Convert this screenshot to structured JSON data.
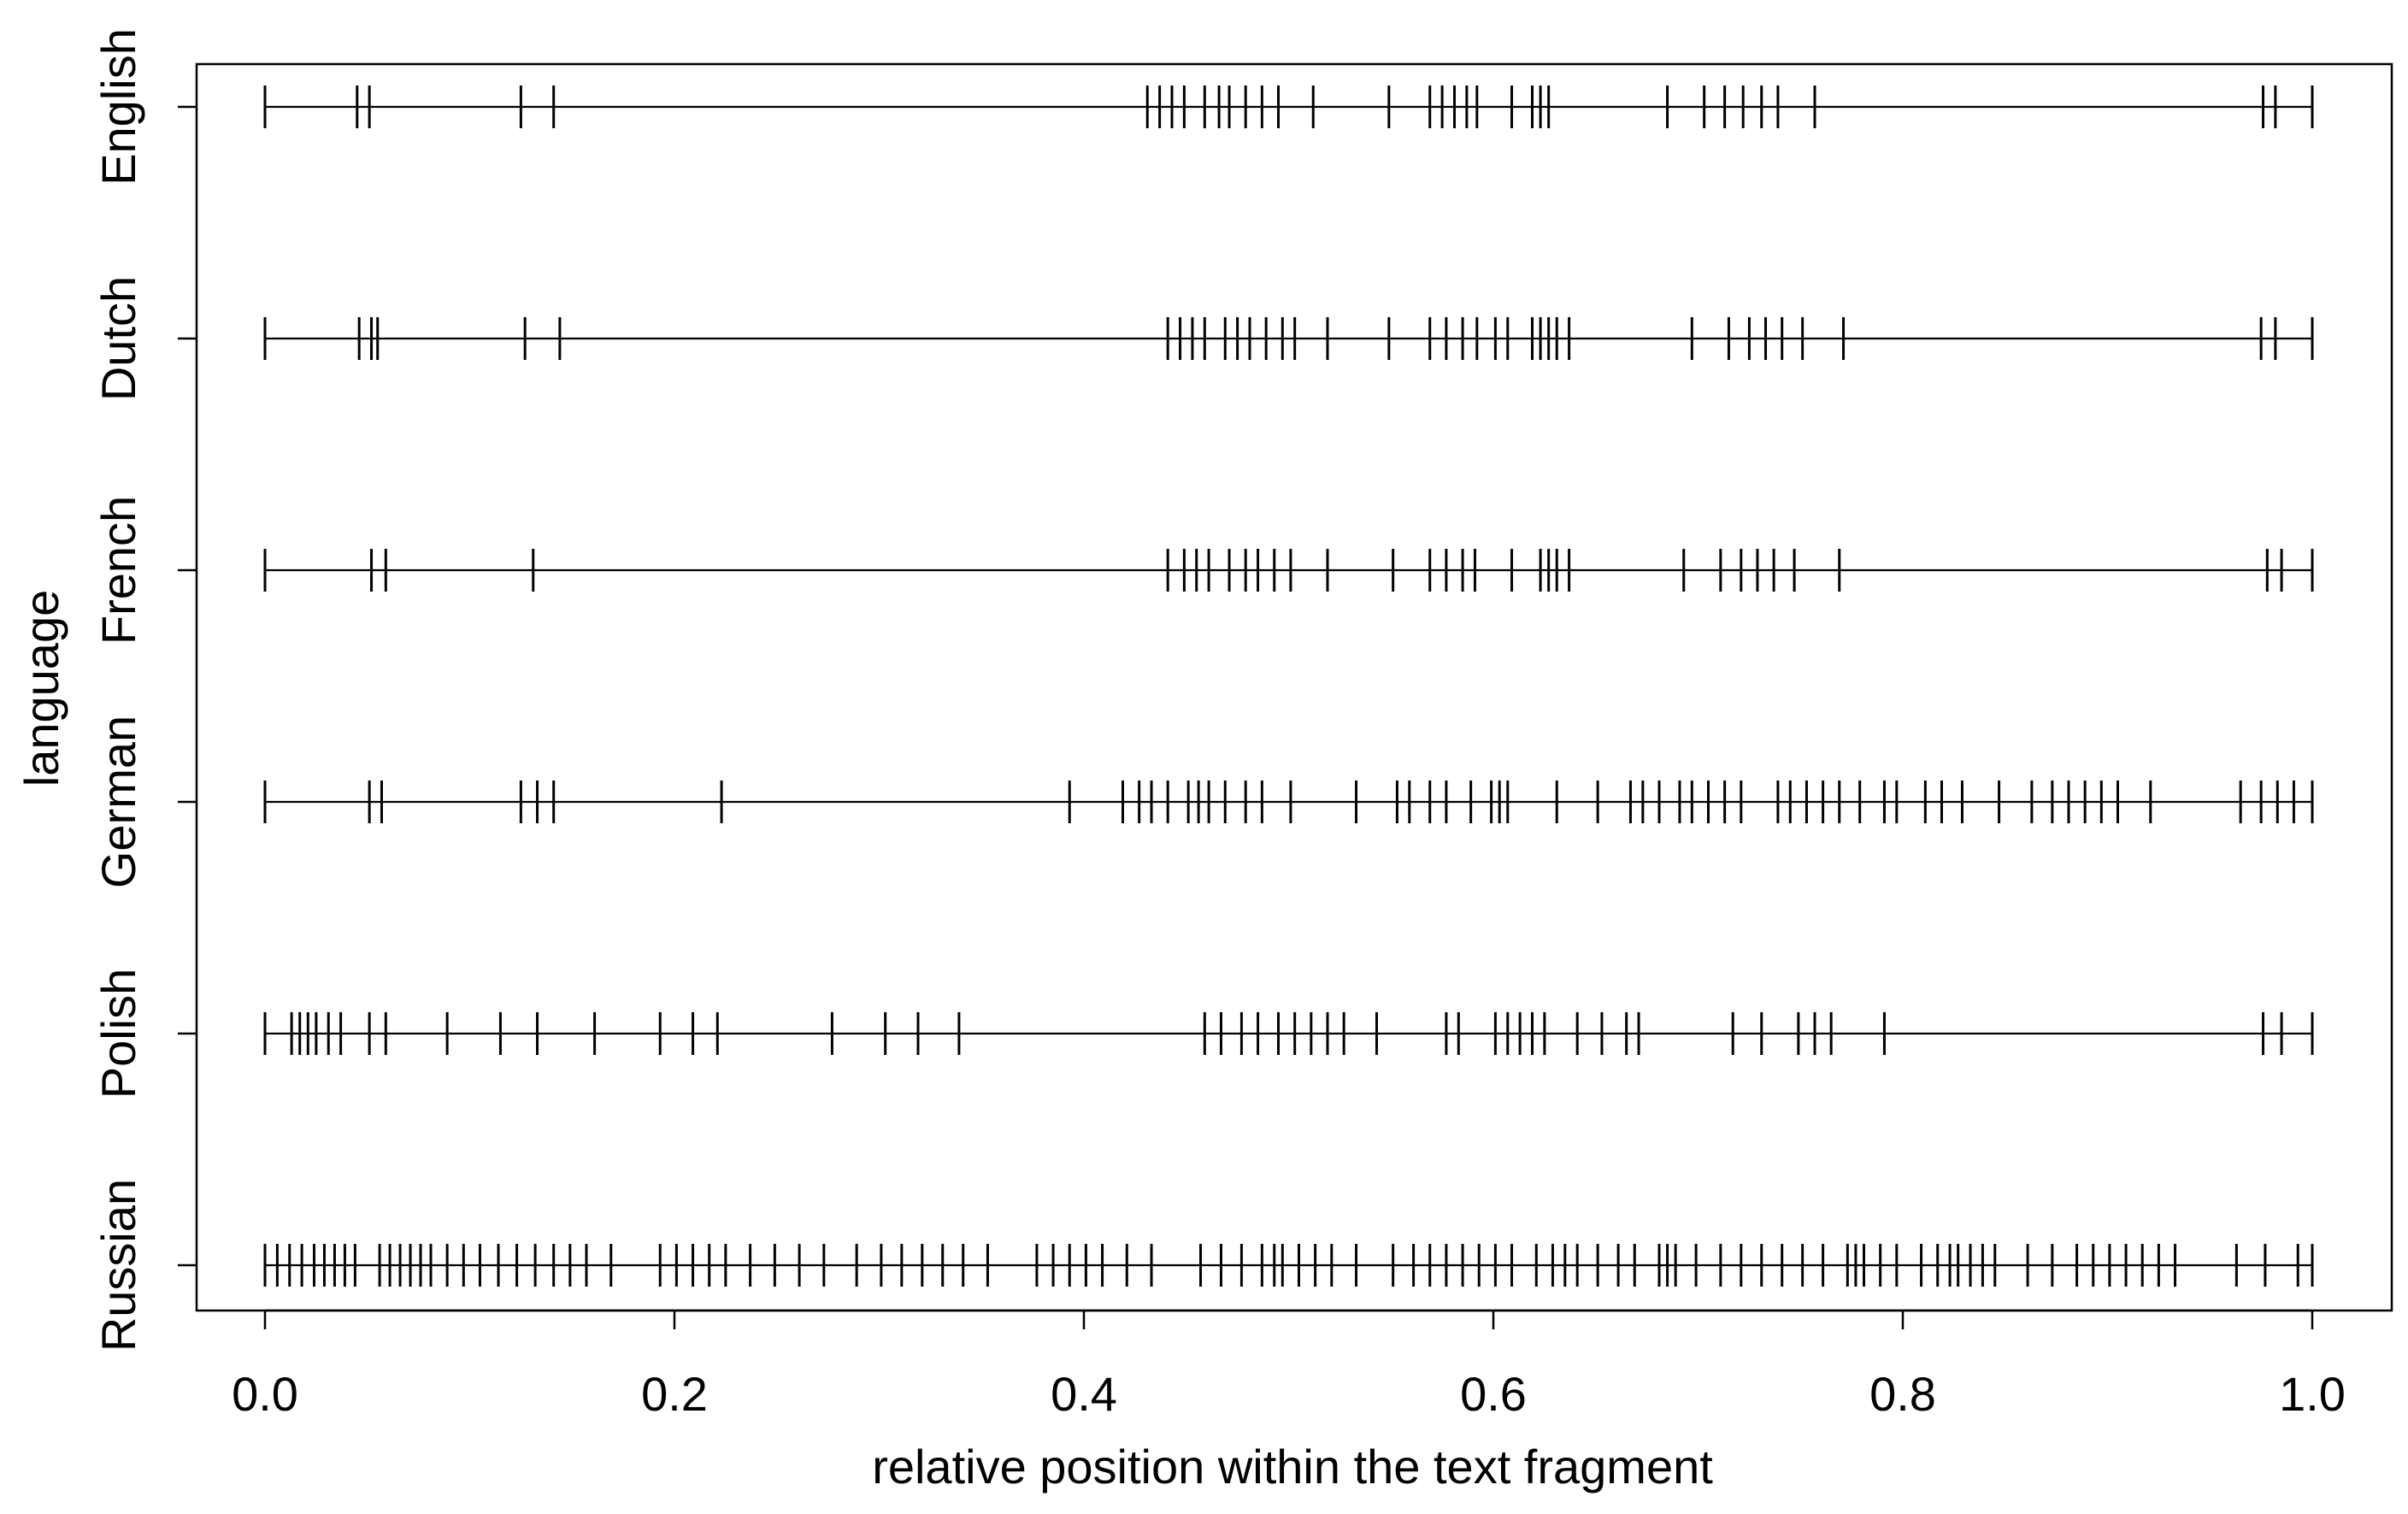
{
  "chart_data": {
    "type": "scatter",
    "title": "",
    "xlabel": "relative position within the text fragment",
    "ylabel": "language",
    "xlim": [
      0.0,
      1.0
    ],
    "x_ticks": [
      "0.0",
      "0.2",
      "0.4",
      "0.6",
      "0.8",
      "1.0"
    ],
    "x_tick_values": [
      0.0,
      0.2,
      0.4,
      0.6,
      0.8,
      1.0
    ],
    "grid": false,
    "legend": "none",
    "marker": "vertical-line",
    "colors": {
      "ink": "#000000",
      "background": "#ffffff"
    },
    "series": [
      {
        "name": "English",
        "x": [
          0.0,
          0.045,
          0.051,
          0.125,
          0.141,
          0.431,
          0.437,
          0.443,
          0.449,
          0.459,
          0.466,
          0.471,
          0.479,
          0.487,
          0.495,
          0.512,
          0.549,
          0.569,
          0.575,
          0.581,
          0.587,
          0.592,
          0.609,
          0.619,
          0.623,
          0.627,
          0.685,
          0.703,
          0.713,
          0.722,
          0.731,
          0.739,
          0.757,
          0.976,
          0.982,
          1.0
        ]
      },
      {
        "name": "Dutch",
        "x": [
          0.0,
          0.046,
          0.052,
          0.055,
          0.127,
          0.144,
          0.441,
          0.447,
          0.453,
          0.459,
          0.469,
          0.475,
          0.481,
          0.489,
          0.497,
          0.503,
          0.519,
          0.549,
          0.569,
          0.577,
          0.585,
          0.592,
          0.601,
          0.607,
          0.619,
          0.623,
          0.627,
          0.631,
          0.637,
          0.697,
          0.715,
          0.725,
          0.733,
          0.741,
          0.751,
          0.771,
          0.975,
          0.982,
          1.0
        ]
      },
      {
        "name": "French",
        "x": [
          0.0,
          0.052,
          0.059,
          0.131,
          0.441,
          0.449,
          0.455,
          0.461,
          0.471,
          0.479,
          0.485,
          0.493,
          0.501,
          0.519,
          0.551,
          0.569,
          0.577,
          0.585,
          0.591,
          0.609,
          0.623,
          0.627,
          0.631,
          0.637,
          0.693,
          0.711,
          0.721,
          0.729,
          0.737,
          0.747,
          0.769,
          0.978,
          0.985,
          1.0
        ]
      },
      {
        "name": "German",
        "x": [
          0.0,
          0.051,
          0.057,
          0.125,
          0.133,
          0.141,
          0.223,
          0.393,
          0.419,
          0.427,
          0.433,
          0.441,
          0.451,
          0.456,
          0.461,
          0.469,
          0.479,
          0.487,
          0.501,
          0.533,
          0.553,
          0.559,
          0.569,
          0.577,
          0.589,
          0.599,
          0.603,
          0.607,
          0.631,
          0.651,
          0.667,
          0.673,
          0.681,
          0.691,
          0.697,
          0.705,
          0.713,
          0.721,
          0.739,
          0.745,
          0.753,
          0.761,
          0.769,
          0.779,
          0.791,
          0.797,
          0.811,
          0.819,
          0.829,
          0.847,
          0.863,
          0.873,
          0.881,
          0.889,
          0.897,
          0.905,
          0.921,
          0.965,
          0.975,
          0.983,
          0.991,
          1.0
        ]
      },
      {
        "name": "Polish",
        "x": [
          0.0,
          0.013,
          0.017,
          0.021,
          0.025,
          0.031,
          0.037,
          0.051,
          0.059,
          0.089,
          0.115,
          0.133,
          0.161,
          0.193,
          0.209,
          0.221,
          0.277,
          0.303,
          0.319,
          0.339,
          0.459,
          0.467,
          0.477,
          0.485,
          0.495,
          0.503,
          0.511,
          0.519,
          0.527,
          0.543,
          0.577,
          0.583,
          0.601,
          0.607,
          0.613,
          0.619,
          0.625,
          0.641,
          0.653,
          0.665,
          0.671,
          0.717,
          0.731,
          0.749,
          0.757,
          0.765,
          0.791,
          0.976,
          0.985,
          1.0
        ]
      },
      {
        "name": "Russian",
        "x": [
          0.0,
          0.006,
          0.012,
          0.018,
          0.024,
          0.029,
          0.034,
          0.039,
          0.044,
          0.056,
          0.061,
          0.066,
          0.071,
          0.076,
          0.081,
          0.089,
          0.097,
          0.105,
          0.114,
          0.123,
          0.132,
          0.141,
          0.149,
          0.157,
          0.169,
          0.193,
          0.201,
          0.209,
          0.217,
          0.225,
          0.237,
          0.249,
          0.261,
          0.273,
          0.289,
          0.301,
          0.311,
          0.321,
          0.331,
          0.341,
          0.353,
          0.377,
          0.385,
          0.393,
          0.401,
          0.409,
          0.421,
          0.433,
          0.457,
          0.467,
          0.477,
          0.487,
          0.493,
          0.497,
          0.505,
          0.513,
          0.521,
          0.533,
          0.551,
          0.561,
          0.569,
          0.577,
          0.585,
          0.593,
          0.601,
          0.609,
          0.621,
          0.629,
          0.635,
          0.641,
          0.651,
          0.661,
          0.669,
          0.681,
          0.685,
          0.689,
          0.699,
          0.711,
          0.721,
          0.731,
          0.741,
          0.751,
          0.761,
          0.773,
          0.777,
          0.781,
          0.789,
          0.797,
          0.809,
          0.817,
          0.823,
          0.827,
          0.833,
          0.839,
          0.845,
          0.861,
          0.873,
          0.885,
          0.893,
          0.901,
          0.909,
          0.917,
          0.925,
          0.933,
          0.963,
          0.977,
          0.993,
          1.0
        ]
      }
    ]
  }
}
